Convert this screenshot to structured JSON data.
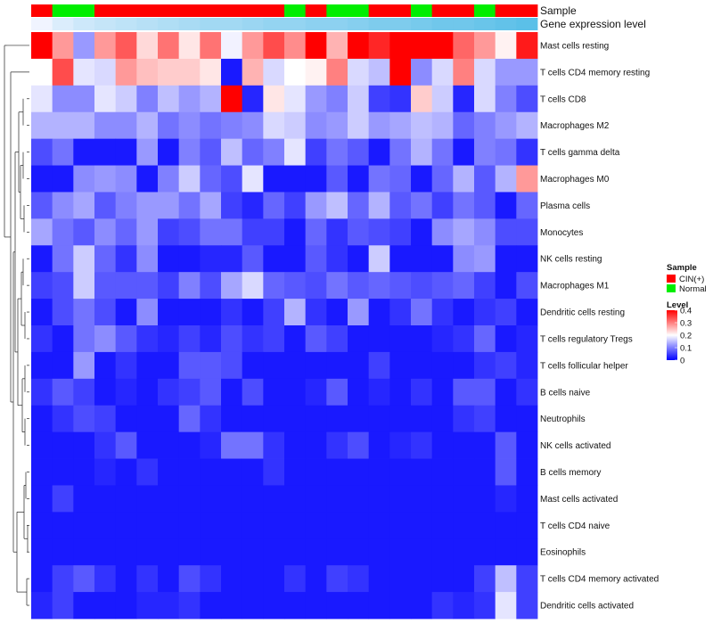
{
  "chart_data": {
    "type": "heatmap",
    "title": "",
    "row_labels": [
      "Mast cells resting",
      "T cells CD4 memory resting",
      "T cells CD8",
      "Macrophages M2",
      "T cells gamma delta",
      "Macrophages M0",
      "Plasma cells",
      "Monocytes",
      "NK cells resting",
      "Macrophages M1",
      "Dendritic cells resting",
      "T cells regulatory  Tregs",
      "T cells follicular helper",
      "B cells naive",
      "Neutrophils",
      "NK cells activated",
      "B cells memory",
      "Mast cells activated",
      "T cells CD4 naive",
      "Eosinophils",
      "T cells CD4 memory activated",
      "Dendritic cells activated"
    ],
    "column_samples": [
      "CIN(+)",
      "Normal",
      "Normal",
      "CIN(+)",
      "CIN(+)",
      "CIN(+)",
      "CIN(+)",
      "CIN(+)",
      "CIN(+)",
      "CIN(+)",
      "CIN(+)",
      "CIN(+)",
      "Normal",
      "CIN(+)",
      "Normal",
      "Normal",
      "CIN(+)",
      "CIN(+)",
      "Normal",
      "CIN(+)",
      "CIN(+)",
      "Normal",
      "CIN(+)",
      "CIN(+)"
    ],
    "column_expression_level": [
      0.3,
      0.27,
      0.25,
      0.24,
      0.23,
      0.22,
      0.21,
      0.2,
      0.19,
      0.19,
      0.18,
      0.17,
      0.17,
      0.16,
      0.16,
      0.15,
      0.14,
      0.14,
      0.13,
      0.12,
      0.12,
      0.11,
      0.1,
      0.09
    ],
    "values": [
      [
        0.4,
        0.28,
        0.12,
        0.28,
        0.33,
        0.23,
        0.31,
        0.22,
        0.31,
        0.19,
        0.28,
        0.34,
        0.29,
        0.4,
        0.26,
        0.4,
        0.37,
        0.4,
        0.4,
        0.4,
        0.32,
        0.28,
        0.21,
        0.38
      ],
      [
        0.2,
        0.34,
        0.18,
        0.17,
        0.28,
        0.25,
        0.24,
        0.24,
        0.22,
        0.02,
        0.26,
        0.17,
        0.2,
        0.21,
        0.3,
        0.17,
        0.15,
        0.4,
        0.11,
        0.17,
        0.3,
        0.17,
        0.12,
        0.12
      ],
      [
        0.18,
        0.11,
        0.11,
        0.18,
        0.16,
        0.1,
        0.15,
        0.12,
        0.14,
        0.4,
        0.03,
        0.22,
        0.18,
        0.12,
        0.1,
        0.16,
        0.05,
        0.04,
        0.24,
        0.16,
        0.03,
        0.17,
        0.1,
        0.06
      ],
      [
        0.14,
        0.14,
        0.14,
        0.11,
        0.11,
        0.14,
        0.09,
        0.11,
        0.09,
        0.1,
        0.11,
        0.17,
        0.16,
        0.11,
        0.12,
        0.16,
        0.12,
        0.13,
        0.15,
        0.14,
        0.08,
        0.1,
        0.12,
        0.14
      ],
      [
        0.06,
        0.09,
        0.02,
        0.02,
        0.02,
        0.12,
        0.02,
        0.1,
        0.07,
        0.15,
        0.08,
        0.1,
        0.18,
        0.05,
        0.09,
        0.07,
        0.02,
        0.09,
        0.14,
        0.09,
        0.02,
        0.1,
        0.09,
        0.04
      ],
      [
        0.02,
        0.02,
        0.11,
        0.12,
        0.11,
        0.02,
        0.1,
        0.16,
        0.08,
        0.06,
        0.18,
        0.02,
        0.02,
        0.02,
        0.07,
        0.02,
        0.09,
        0.08,
        0.02,
        0.08,
        0.14,
        0.07,
        0.14,
        0.28
      ],
      [
        0.07,
        0.11,
        0.13,
        0.07,
        0.1,
        0.12,
        0.12,
        0.09,
        0.13,
        0.05,
        0.03,
        0.08,
        0.05,
        0.12,
        0.15,
        0.08,
        0.14,
        0.07,
        0.09,
        0.05,
        0.09,
        0.07,
        0.02,
        0.08
      ],
      [
        0.13,
        0.09,
        0.07,
        0.11,
        0.08,
        0.12,
        0.05,
        0.06,
        0.09,
        0.09,
        0.05,
        0.05,
        0.02,
        0.08,
        0.04,
        0.07,
        0.06,
        0.05,
        0.02,
        0.11,
        0.13,
        0.11,
        0.06,
        0.06
      ],
      [
        0.02,
        0.09,
        0.16,
        0.08,
        0.04,
        0.11,
        0.02,
        0.02,
        0.03,
        0.03,
        0.07,
        0.02,
        0.02,
        0.07,
        0.04,
        0.02,
        0.16,
        0.02,
        0.02,
        0.02,
        0.11,
        0.12,
        0.02,
        0.02
      ],
      [
        0.05,
        0.06,
        0.16,
        0.07,
        0.07,
        0.07,
        0.05,
        0.1,
        0.06,
        0.13,
        0.17,
        0.08,
        0.07,
        0.06,
        0.09,
        0.07,
        0.08,
        0.07,
        0.06,
        0.07,
        0.08,
        0.05,
        0.02,
        0.06
      ],
      [
        0.02,
        0.06,
        0.09,
        0.06,
        0.02,
        0.11,
        0.02,
        0.02,
        0.02,
        0.04,
        0.02,
        0.05,
        0.14,
        0.04,
        0.02,
        0.12,
        0.02,
        0.04,
        0.09,
        0.04,
        0.02,
        0.04,
        0.05,
        0.02
      ],
      [
        0.04,
        0.02,
        0.09,
        0.11,
        0.07,
        0.04,
        0.03,
        0.05,
        0.03,
        0.06,
        0.04,
        0.05,
        0.02,
        0.07,
        0.05,
        0.02,
        0.02,
        0.02,
        0.02,
        0.03,
        0.04,
        0.08,
        0.02,
        0.03
      ],
      [
        0.02,
        0.02,
        0.12,
        0.02,
        0.04,
        0.02,
        0.02,
        0.07,
        0.07,
        0.06,
        0.02,
        0.02,
        0.02,
        0.02,
        0.02,
        0.02,
        0.05,
        0.02,
        0.02,
        0.02,
        0.02,
        0.04,
        0.05,
        0.03
      ],
      [
        0.04,
        0.07,
        0.05,
        0.02,
        0.03,
        0.02,
        0.04,
        0.05,
        0.07,
        0.02,
        0.06,
        0.02,
        0.02,
        0.03,
        0.07,
        0.02,
        0.03,
        0.02,
        0.04,
        0.02,
        0.07,
        0.07,
        0.02,
        0.04
      ],
      [
        0.02,
        0.04,
        0.06,
        0.05,
        0.02,
        0.02,
        0.02,
        0.08,
        0.04,
        0.02,
        0.02,
        0.02,
        0.02,
        0.02,
        0.02,
        0.02,
        0.02,
        0.02,
        0.02,
        0.02,
        0.04,
        0.05,
        0.02,
        0.02
      ],
      [
        0.02,
        0.02,
        0.02,
        0.04,
        0.07,
        0.02,
        0.02,
        0.02,
        0.03,
        0.09,
        0.09,
        0.04,
        0.02,
        0.02,
        0.04,
        0.06,
        0.02,
        0.03,
        0.04,
        0.02,
        0.02,
        0.02,
        0.07,
        0.02
      ],
      [
        0.02,
        0.02,
        0.02,
        0.03,
        0.02,
        0.04,
        0.02,
        0.02,
        0.02,
        0.02,
        0.02,
        0.04,
        0.02,
        0.02,
        0.02,
        0.02,
        0.02,
        0.02,
        0.02,
        0.02,
        0.02,
        0.02,
        0.07,
        0.02
      ],
      [
        0.02,
        0.05,
        0.02,
        0.02,
        0.02,
        0.02,
        0.02,
        0.02,
        0.02,
        0.02,
        0.02,
        0.02,
        0.02,
        0.02,
        0.02,
        0.02,
        0.02,
        0.02,
        0.02,
        0.02,
        0.02,
        0.02,
        0.03,
        0.02
      ],
      [
        0.02,
        0.02,
        0.02,
        0.02,
        0.02,
        0.02,
        0.02,
        0.02,
        0.02,
        0.02,
        0.02,
        0.02,
        0.02,
        0.02,
        0.02,
        0.02,
        0.02,
        0.02,
        0.02,
        0.02,
        0.02,
        0.02,
        0.02,
        0.02
      ],
      [
        0.02,
        0.02,
        0.02,
        0.02,
        0.02,
        0.02,
        0.02,
        0.02,
        0.02,
        0.02,
        0.02,
        0.02,
        0.02,
        0.02,
        0.02,
        0.02,
        0.02,
        0.02,
        0.02,
        0.02,
        0.02,
        0.02,
        0.02,
        0.02
      ],
      [
        0.02,
        0.05,
        0.07,
        0.04,
        0.02,
        0.04,
        0.02,
        0.06,
        0.04,
        0.02,
        0.02,
        0.02,
        0.04,
        0.02,
        0.05,
        0.04,
        0.02,
        0.02,
        0.02,
        0.02,
        0.02,
        0.05,
        0.15,
        0.05
      ],
      [
        0.03,
        0.05,
        0.02,
        0.02,
        0.02,
        0.03,
        0.03,
        0.04,
        0.02,
        0.02,
        0.02,
        0.02,
        0.02,
        0.02,
        0.02,
        0.02,
        0.02,
        0.02,
        0.02,
        0.04,
        0.03,
        0.04,
        0.18,
        0.05
      ]
    ],
    "annotation_tracks": [
      "Sample",
      "Gene expression level"
    ],
    "legend": {
      "sample_title": "Sample",
      "sample_entries": [
        {
          "label": "CIN(+)",
          "color": "#ff0000"
        },
        {
          "label": "Normal",
          "color": "#00ee00"
        }
      ],
      "level_title": "Level",
      "level_ticks": [
        "0.4",
        "0.3",
        "0.2",
        "0.1",
        "0"
      ],
      "level_tick_values": [
        0.4,
        0.3,
        0.2,
        0.1,
        0
      ]
    },
    "color_scale": {
      "min": 0,
      "mid": 0.2,
      "max": 0.4,
      "low": "#0000ff",
      "mid_color": "#ffffff",
      "high": "#ff0000"
    },
    "expression_scale": {
      "min": 0.09,
      "max": 0.3,
      "low": "#5bc0e8",
      "high": "#f0f4ff"
    },
    "row_dendrogram": true,
    "legend_position": "right"
  }
}
